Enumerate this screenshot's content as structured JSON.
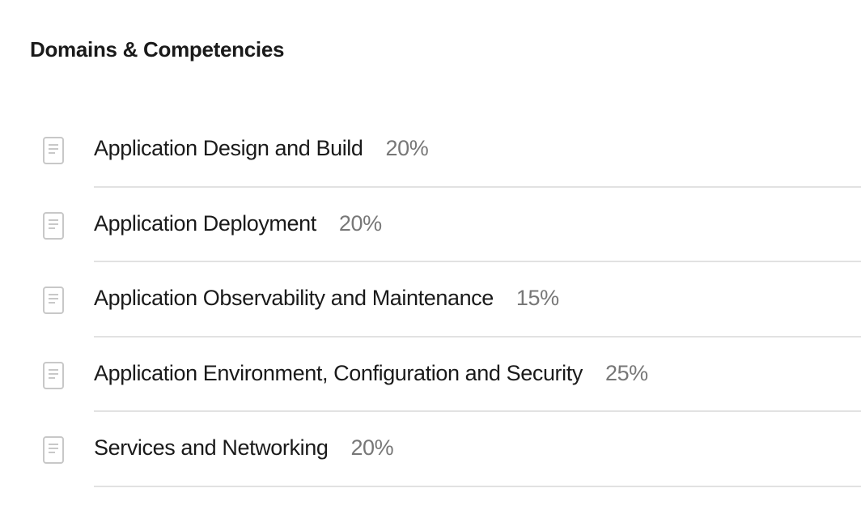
{
  "section": {
    "title": "Domains & Competencies",
    "items": [
      {
        "label": "Application Design and Build",
        "weight": "20%",
        "icon": "document-icon"
      },
      {
        "label": "Application Deployment",
        "weight": "20%",
        "icon": "document-icon"
      },
      {
        "label": "Application Observability and Maintenance",
        "weight": "15%",
        "icon": "document-icon"
      },
      {
        "label": "Application Environment, Configuration and Security",
        "weight": "25%",
        "icon": "document-icon"
      },
      {
        "label": "Services and Networking",
        "weight": "20%",
        "icon": "document-icon"
      }
    ]
  }
}
